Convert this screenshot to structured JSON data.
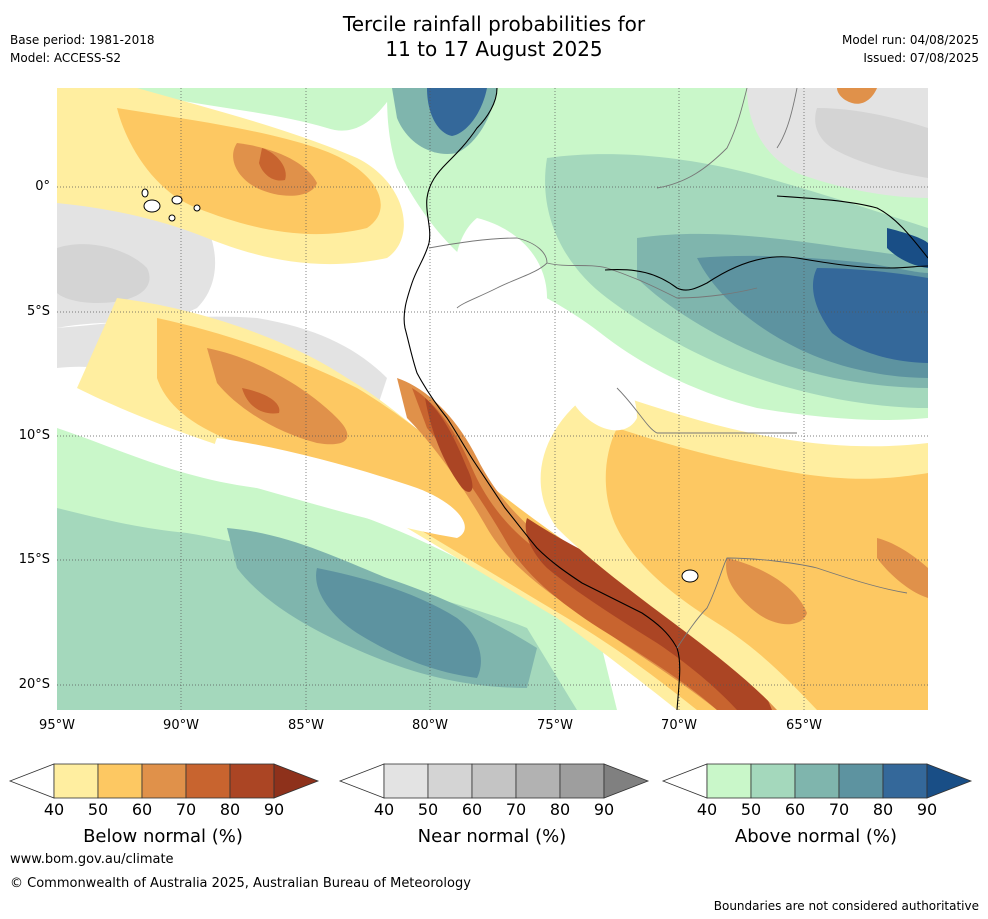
{
  "title": {
    "line1": "Tercile rainfall probabilities for",
    "line2": "11 to 17 August 2025"
  },
  "meta": {
    "base_period": "Base period: 1981-2018",
    "model": "Model: ACCESS-S2",
    "model_run": "Model run: 04/08/2025",
    "issued": "Issued: 07/08/2025"
  },
  "map": {
    "lat_labels": [
      "0°",
      "5°S",
      "10°S",
      "15°S",
      "20°S"
    ],
    "lon_labels": [
      "95°W",
      "90°W",
      "85°W",
      "80°W",
      "75°W",
      "70°W",
      "65°W"
    ],
    "colors": {
      "below": [
        "#ffeea0",
        "#fdc862",
        "#e0914a",
        "#c8642f",
        "#ab4524",
        "#8e311b"
      ],
      "near": [
        "#e3e3e3",
        "#d4d4d4",
        "#c4c4c4",
        "#b2b2b2",
        "#9e9e9e",
        "#808080"
      ],
      "above": [
        "#c9f7c9",
        "#a4d8bc",
        "#7fb5ad",
        "#5d93a0",
        "#34689a",
        "#194e86"
      ]
    }
  },
  "colorbars": [
    {
      "title": "Below normal (%)",
      "ticks": [
        "40",
        "50",
        "60",
        "70",
        "80",
        "90"
      ]
    },
    {
      "title": "Near normal (%)",
      "ticks": [
        "40",
        "50",
        "60",
        "70",
        "80",
        "90"
      ]
    },
    {
      "title": "Above normal (%)",
      "ticks": [
        "40",
        "50",
        "60",
        "70",
        "80",
        "90"
      ]
    }
  ],
  "footer": {
    "website": "www.bom.gov.au/climate",
    "copyright": "© Commonwealth of Australia 2025, Australian Bureau of Meteorology",
    "disclaimer": "Boundaries are not considered authoritative"
  }
}
